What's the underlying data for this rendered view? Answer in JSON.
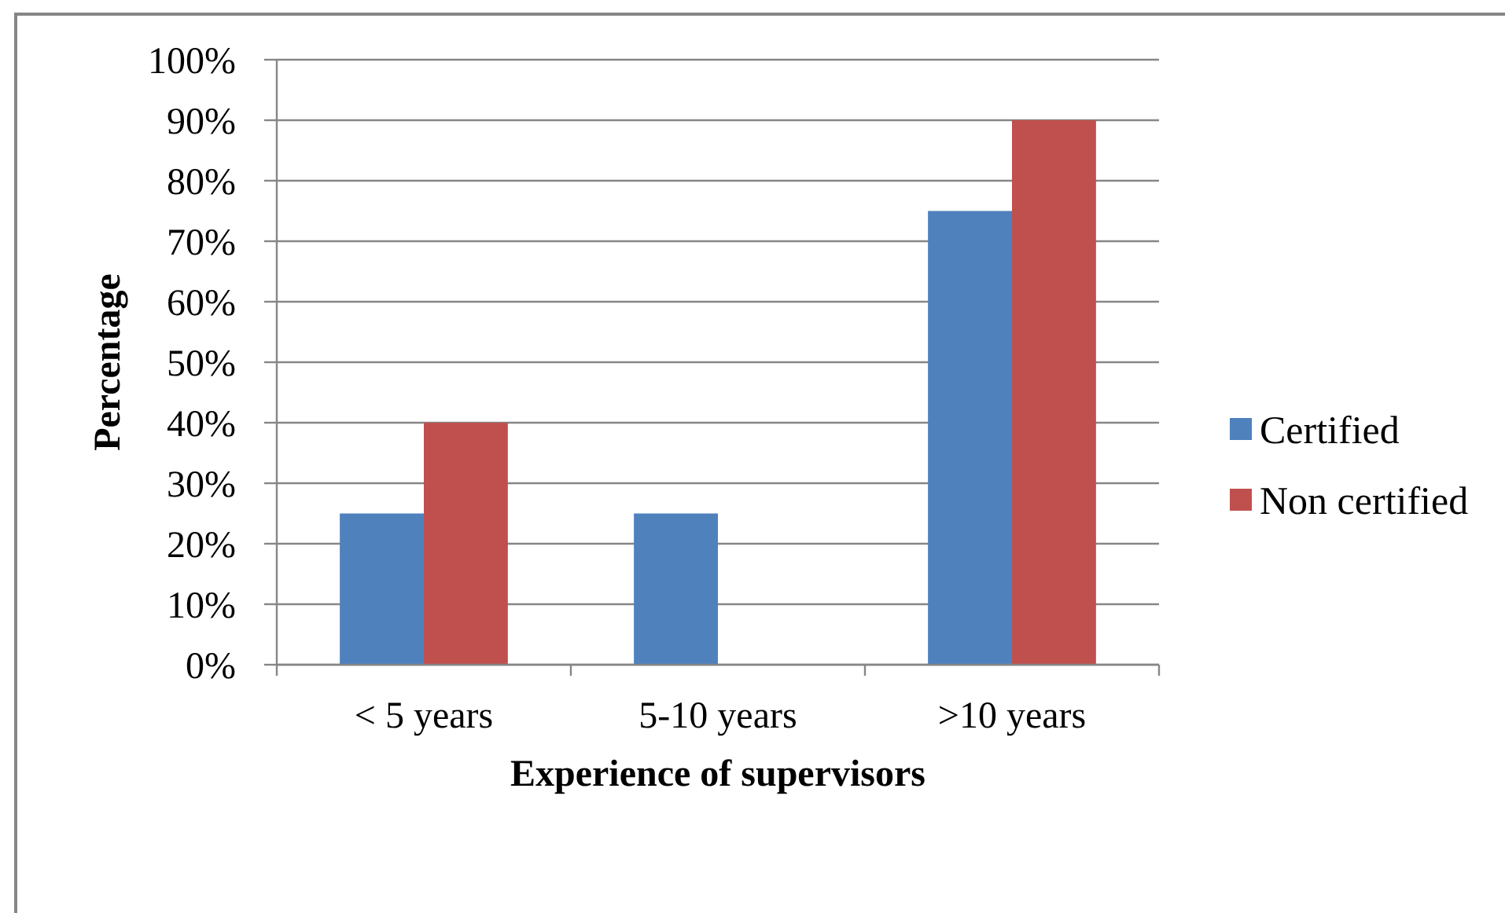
{
  "chart_data": {
    "type": "bar",
    "xlabel": "Experience of supervisors",
    "ylabel": "Percentage",
    "categories": [
      "< 5 years",
      "5-10 years",
      ">10 years"
    ],
    "series": [
      {
        "name": "Certified",
        "color": "#4f81bd",
        "values": [
          25,
          25,
          75
        ]
      },
      {
        "name": "Non certified",
        "color": "#c0504d",
        "values": [
          40,
          0,
          90
        ]
      }
    ],
    "ylim": [
      0,
      100
    ],
    "yticks": [
      {
        "value": 0,
        "label": "0%"
      },
      {
        "value": 10,
        "label": "10%"
      },
      {
        "value": 20,
        "label": "20%"
      },
      {
        "value": 30,
        "label": "30%"
      },
      {
        "value": 40,
        "label": "40%"
      },
      {
        "value": 50,
        "label": "50%"
      },
      {
        "value": 60,
        "label": "60%"
      },
      {
        "value": 70,
        "label": "70%"
      },
      {
        "value": 80,
        "label": "80%"
      },
      {
        "value": 90,
        "label": "90%"
      },
      {
        "value": 100,
        "label": "100%"
      }
    ],
    "grid": "y",
    "legend": "right"
  }
}
